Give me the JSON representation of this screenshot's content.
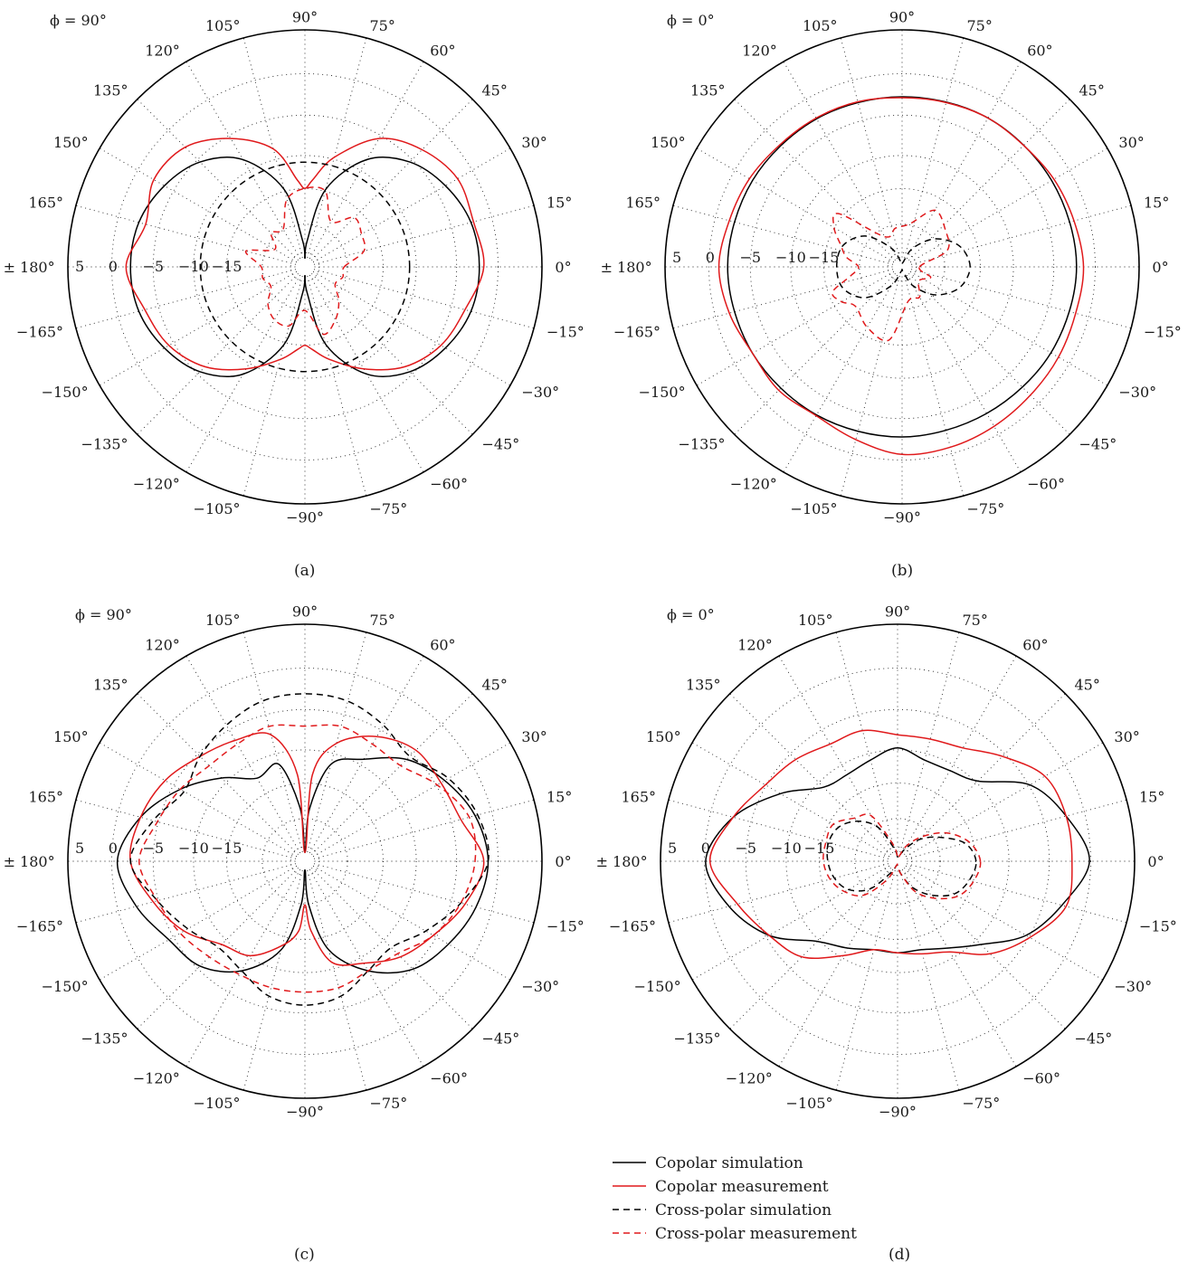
{
  "colors": {
    "simulation": "#000000",
    "measurement": "#e0191b",
    "grid": "#222222"
  },
  "legend": [
    {
      "label": "Copolar simulation",
      "color": "#000000",
      "dash": "solid"
    },
    {
      "label": "Copolar measurement",
      "color": "#e0191b",
      "dash": "solid"
    },
    {
      "label": "Cross-polar simulation",
      "color": "#000000",
      "dash": "dashed"
    },
    {
      "label": "Cross-polar measurement",
      "color": "#e0191b",
      "dash": "dashed"
    }
  ],
  "chart_data": [
    {
      "type": "polar",
      "panel": "a",
      "caption": "(a)",
      "phi_label": "ϕ = 90°",
      "angle_ticks": [
        "0°",
        "15°",
        "30°",
        "45°",
        "60°",
        "75°",
        "90°",
        "105°",
        "120°",
        "135°",
        "150°",
        "165°",
        "± 180°",
        "−165°",
        "−150°",
        "−135°",
        "−120°",
        "−105°",
        "−90°",
        "−75°",
        "−60°",
        "−45°",
        "−30°",
        "−15°"
      ],
      "radial_ticks": [
        "5",
        "0",
        "−5",
        "−10",
        "−15"
      ],
      "rlim": [
        -20,
        5
      ],
      "series": [
        {
          "name": "Copolar simulation",
          "angles_deg": [
            0,
            15,
            30,
            45,
            60,
            75,
            85,
            90,
            95,
            105,
            120,
            135,
            150,
            165,
            180,
            195,
            210,
            225,
            240,
            255,
            265,
            270,
            275,
            285,
            300,
            315,
            330,
            345
          ],
          "gain_db": [
            0,
            -0.3,
            -1.4,
            -3,
            -5.8,
            -10.8,
            -17,
            -19,
            -17,
            -10.8,
            -5.8,
            -3,
            -1.4,
            -0.3,
            0,
            -0.3,
            -1.4,
            -3,
            -5.8,
            -10.8,
            -17,
            -19,
            -17,
            -10.8,
            -5.8,
            -3,
            -1.4,
            -0.3
          ]
        },
        {
          "name": "Copolar measurement",
          "angles_deg": [
            0,
            15,
            30,
            45,
            60,
            75,
            85,
            90,
            95,
            105,
            120,
            135,
            150,
            165,
            180,
            195,
            210,
            225,
            240,
            255,
            265,
            270,
            275,
            285,
            300,
            315,
            330,
            345
          ],
          "gain_db": [
            0.5,
            0,
            0.2,
            -1,
            -3,
            -7,
            -10,
            -11,
            -10,
            -6,
            -3,
            -0.6,
            0,
            -1.1,
            0.5,
            -1,
            -2,
            -3.8,
            -6.5,
            -9,
            -10.5,
            -11,
            -10.5,
            -9,
            -6.5,
            -3.8,
            -2,
            -1
          ]
        },
        {
          "name": "Cross-polar simulation",
          "angles_deg": [
            0,
            15,
            30,
            45,
            60,
            75,
            90,
            105,
            120,
            135,
            150,
            165,
            180,
            195,
            210,
            225,
            240,
            255,
            270,
            285,
            300,
            315,
            330,
            345
          ],
          "gain_db": [
            -8,
            -8,
            -8,
            -8,
            -8,
            -8,
            -8,
            -8,
            -8,
            -8,
            -8,
            -8,
            -8,
            -8,
            -8,
            -8,
            -8,
            -8,
            -8,
            -8,
            -8,
            -8,
            -8,
            -8
          ]
        },
        {
          "name": "Cross-polar measurement",
          "angles_deg": [
            0,
            15,
            30,
            45,
            60,
            75,
            90,
            105,
            120,
            135,
            150,
            165,
            180,
            195,
            210,
            225,
            240,
            255,
            270,
            285,
            300,
            315,
            330,
            345
          ],
          "gain_db": [
            -15.5,
            -13,
            -12.5,
            -12,
            -14,
            -11,
            -11,
            -12,
            -15,
            -14.5,
            -16,
            -13,
            -15,
            -15,
            -15.5,
            -14,
            -13,
            -13,
            -15,
            -12,
            -13,
            -14.5,
            -16,
            -15.5
          ]
        }
      ]
    },
    {
      "type": "polar",
      "panel": "b",
      "caption": "(b)",
      "phi_label": "ϕ = 0°",
      "angle_ticks": [
        "0°",
        "15°",
        "30°",
        "45°",
        "60°",
        "75°",
        "90°",
        "105°",
        "120°",
        "135°",
        "150°",
        "165°",
        "± 180°",
        "−165°",
        "−150°",
        "−135°",
        "−120°",
        "−105°",
        "−90°",
        "−75°",
        "−60°",
        "−45°",
        "−30°",
        "−15°"
      ],
      "radial_ticks": [
        "5",
        "0",
        "−5",
        "−10",
        "−15"
      ],
      "rlim": [
        -20,
        5
      ],
      "series": [
        {
          "name": "Copolar simulation",
          "angles_deg": [
            0,
            30,
            60,
            90,
            120,
            150,
            180,
            210,
            240,
            270,
            300,
            330
          ],
          "gain_db": [
            0,
            -0.2,
            -0.3,
            -0.5,
            -0.4,
            -0.2,
            0,
            -0.2,
            -0.4,
            -0.5,
            -0.6,
            -0.3
          ]
        },
        {
          "name": "Copolar measurement",
          "angles_deg": [
            0,
            15,
            30,
            45,
            60,
            75,
            90,
            105,
            120,
            135,
            150,
            165,
            180,
            195,
            210,
            225,
            240,
            255,
            270,
            285,
            300,
            315,
            330,
            345
          ],
          "gain_db": [
            0.8,
            0.4,
            0.1,
            -0.3,
            -0.3,
            -0.5,
            -0.6,
            -0.4,
            -0.3,
            -0.2,
            0.2,
            0.5,
            1,
            0.5,
            -0.2,
            0,
            -0.3,
            0.5,
            1.5,
            1.4,
            1.1,
            0.8,
            0.7,
            0.6
          ]
        },
        {
          "name": "Cross-polar simulation",
          "angles_deg": [
            0,
            20,
            40,
            60,
            80,
            100,
            120,
            140,
            160,
            180,
            200,
            220,
            240,
            260,
            280,
            300,
            320,
            340
          ],
          "gain_db": [
            -12.2,
            -13,
            -15,
            -17.5,
            -19.5,
            -19.5,
            -17.5,
            -14.5,
            -12.8,
            -12.5,
            -12.8,
            -14.5,
            -17.5,
            -19.5,
            -19.5,
            -17.5,
            -15,
            -13
          ]
        },
        {
          "name": "Cross-polar measurement",
          "angles_deg": [
            0,
            20,
            40,
            60,
            80,
            100,
            120,
            140,
            150,
            160,
            170,
            180,
            190,
            200,
            210,
            220,
            240,
            260,
            280,
            300,
            320,
            340
          ],
          "gain_db": [
            -18,
            -14.5,
            -13.5,
            -12.5,
            -15,
            -15.5,
            -16,
            -10.5,
            -11,
            -12.5,
            -13.5,
            -15,
            -14,
            -11.5,
            -12,
            -13,
            -12,
            -11.5,
            -16,
            -16,
            -17.5,
            -16.5
          ]
        }
      ]
    },
    {
      "type": "polar",
      "panel": "c",
      "caption": "(c)",
      "phi_label": "ϕ = 90°",
      "angle_ticks": [
        "0°",
        "15°",
        "30°",
        "45°",
        "60°",
        "75°",
        "90°",
        "105°",
        "120°",
        "135°",
        "150°",
        "165°",
        "± 180°",
        "−165°",
        "−150°",
        "−135°",
        "−120°",
        "−105°",
        "−90°",
        "−75°",
        "−60°",
        "−45°",
        "−30°",
        "−15°"
      ],
      "radial_ticks": [
        "5",
        "0",
        "−5",
        "−10",
        "−15"
      ],
      "rlim": [
        -20,
        5
      ],
      "series": [
        {
          "name": "Copolar simulation",
          "angles_deg": [
            0,
            15,
            30,
            45,
            60,
            75,
            85,
            90,
            95,
            105,
            120,
            135,
            150,
            165,
            180,
            195,
            210,
            225,
            240,
            255,
            265,
            270,
            275,
            285,
            300,
            315,
            330,
            345
          ],
          "gain_db": [
            1,
            0.2,
            -1.5,
            -3.5,
            -6.5,
            -8.5,
            -14,
            -19,
            -14,
            -8.5,
            -9,
            -6.5,
            -3.5,
            -0.5,
            1.5,
            0,
            -2,
            -3,
            -5.5,
            -9.5,
            -15,
            -19,
            -15,
            -9.5,
            -5.5,
            -2.5,
            -1,
            0.3
          ]
        },
        {
          "name": "Copolar measurement",
          "angles_deg": [
            0,
            15,
            30,
            45,
            60,
            75,
            85,
            90,
            95,
            105,
            120,
            135,
            150,
            165,
            180,
            195,
            210,
            225,
            240,
            255,
            265,
            270,
            275,
            285,
            300,
            315,
            330,
            345
          ],
          "gain_db": [
            0.5,
            -1.5,
            -2,
            -2,
            -3.5,
            -6,
            -10,
            -19,
            -10,
            -5,
            -4,
            -3,
            -1.5,
            -0.5,
            0,
            -2,
            -4,
            -6.5,
            -7.5,
            -10,
            -12,
            -15,
            -12,
            -8,
            -6.5,
            -4.5,
            -3,
            -1
          ]
        },
        {
          "name": "Cross-polar simulation",
          "angles_deg": [
            0,
            15,
            30,
            45,
            60,
            75,
            90,
            105,
            120,
            135,
            150,
            165,
            180,
            195,
            210,
            225,
            240,
            255,
            270,
            285,
            300,
            315,
            330,
            345
          ],
          "gain_db": [
            1,
            0.5,
            -1,
            -3,
            -2,
            -1,
            -0.8,
            -1,
            -2,
            -3,
            -4,
            -2,
            0,
            -2.5,
            -4.5,
            -6,
            -5.5,
            -4,
            -3.5,
            -4,
            -5.5,
            -6,
            -4,
            -1.5
          ]
        },
        {
          "name": "Cross-polar measurement",
          "angles_deg": [
            0,
            15,
            30,
            45,
            60,
            75,
            90,
            105,
            120,
            135,
            150,
            165,
            180,
            195,
            210,
            225,
            240,
            255,
            270,
            285,
            300,
            315,
            330,
            345
          ],
          "gain_db": [
            -0.5,
            -0.5,
            -2.5,
            -4.5,
            -4.5,
            -4,
            -4.5,
            -4,
            -4.5,
            -4.5,
            -3.5,
            -2.5,
            -1,
            -2.5,
            -3.5,
            -4.5,
            -5,
            -5,
            -5,
            -5,
            -5.5,
            -5,
            -3,
            -1.5
          ]
        }
      ]
    },
    {
      "type": "polar",
      "panel": "d",
      "caption": "(d)",
      "phi_label": "ϕ = 0°",
      "angle_ticks": [
        "0°",
        "15°",
        "30°",
        "45°",
        "60°",
        "75°",
        "90°",
        "105°",
        "120°",
        "135°",
        "150°",
        "165°",
        "± 180°",
        "−165°",
        "−150°",
        "−135°",
        "−120°",
        "−105°",
        "−90°",
        "−75°",
        "−60°",
        "−45°",
        "−30°",
        "−15°"
      ],
      "radial_ticks": [
        "5",
        "0",
        "−5",
        "−10",
        "−15"
      ],
      "rlim": [
        -20,
        5
      ],
      "series": [
        {
          "name": "Copolar simulation",
          "angles_deg": [
            0,
            15,
            30,
            45,
            60,
            75,
            90,
            105,
            120,
            135,
            150,
            165,
            180,
            195,
            210,
            225,
            240,
            255,
            270,
            285,
            300,
            315,
            330,
            345
          ],
          "gain_db": [
            2,
            0,
            -2.5,
            -7,
            -8,
            -8,
            -7,
            -8,
            -8.5,
            -8,
            -4.5,
            -0.5,
            2,
            0,
            -3,
            -7,
            -8.5,
            -9.5,
            -9.5,
            -9.5,
            -8.5,
            -6.5,
            -3,
            -0.5
          ]
        },
        {
          "name": "Copolar measurement",
          "angles_deg": [
            0,
            15,
            30,
            45,
            60,
            75,
            90,
            105,
            120,
            135,
            150,
            165,
            180,
            195,
            210,
            225,
            240,
            255,
            270,
            285,
            300,
            315,
            330,
            345
          ],
          "gain_db": [
            0,
            0,
            -0.5,
            -3,
            -5,
            -5.5,
            -5.5,
            -4.5,
            -4.5,
            -3.5,
            -2.5,
            -0.5,
            1.5,
            -1,
            -3,
            -4.5,
            -7.5,
            -9.5,
            -9.5,
            -9,
            -8,
            -5,
            -2.5,
            0
          ]
        },
        {
          "name": "Cross-polar simulation",
          "angles_deg": [
            0,
            15,
            30,
            45,
            60,
            75,
            90,
            105,
            120,
            135,
            150,
            165,
            180,
            195,
            210,
            225,
            240,
            255,
            270,
            285,
            300,
            315,
            330,
            345
          ],
          "gain_db": [
            -11,
            -12,
            -14.5,
            -16.5,
            -18.5,
            -19.5,
            -19.5,
            -18.5,
            -15.5,
            -13.5,
            -12.2,
            -11.8,
            -12,
            -12.5,
            -13.5,
            -15.5,
            -18.5,
            -19.5,
            -19.5,
            -18.5,
            -16.5,
            -14.5,
            -12.5,
            -11.5
          ]
        },
        {
          "name": "Cross-polar measurement",
          "angles_deg": [
            0,
            15,
            30,
            45,
            60,
            75,
            90,
            105,
            120,
            135,
            150,
            165,
            180,
            195,
            210,
            225,
            240,
            255,
            270,
            285,
            300,
            315,
            330,
            345
          ],
          "gain_db": [
            -10.5,
            -11.5,
            -13.5,
            -16,
            -18,
            -19.5,
            -19.5,
            -18,
            -14,
            -13,
            -11.5,
            -11.5,
            -11.5,
            -12,
            -13,
            -14.5,
            -17.5,
            -19.5,
            -19.5,
            -18.5,
            -16,
            -14,
            -12,
            -11
          ]
        }
      ]
    }
  ]
}
